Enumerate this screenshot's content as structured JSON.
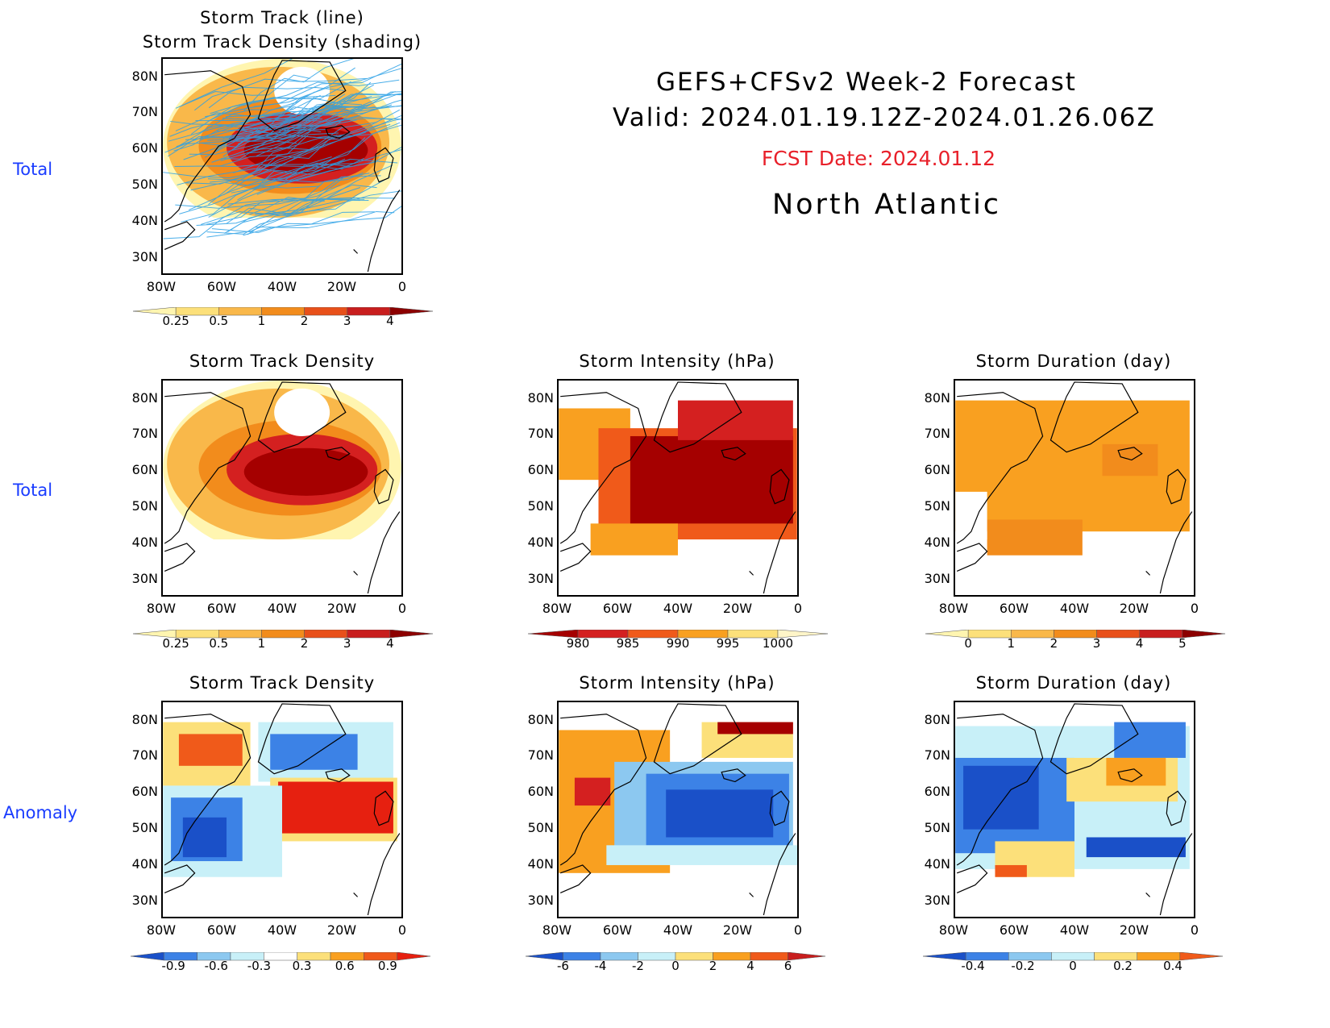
{
  "header": {
    "line1": "GEFS+CFSv2 Week-2 Forecast",
    "line2": "Valid: 2024.01.19.12Z-2024.01.26.06Z",
    "fcst_date": "FCST Date: 2024.01.12",
    "region": "North Atlantic"
  },
  "row_labels": [
    "Total",
    "Total",
    "Anomaly"
  ],
  "axes": {
    "lat_ticks": [
      "80N",
      "70N",
      "60N",
      "50N",
      "40N",
      "30N"
    ],
    "lon_ticks": [
      "80W",
      "60W",
      "40W",
      "20W",
      "0"
    ]
  },
  "panels": [
    {
      "id": "p1",
      "title_line1": "Storm Track (line)",
      "title_line2": "Storm Track Density (shading)",
      "colorbar": {
        "ticks": [
          "0.25",
          "0.5",
          "1",
          "2",
          "3",
          "4"
        ],
        "colors": [
          "#fff5b0",
          "#fce07a",
          "#f9b84a",
          "#f28c1c",
          "#e8501a",
          "#c81e1e",
          "#8c0000"
        ]
      }
    },
    {
      "id": "p2",
      "title": "Storm Track Density",
      "colorbar": {
        "ticks": [
          "0.25",
          "0.5",
          "1",
          "2",
          "3",
          "4"
        ],
        "colors": [
          "#fff5b0",
          "#fce07a",
          "#f9b84a",
          "#f28c1c",
          "#e8501a",
          "#c81e1e",
          "#8c0000"
        ]
      }
    },
    {
      "id": "p3",
      "title": "Storm Intensity (hPa)",
      "colorbar": {
        "ticks": [
          "980",
          "985",
          "990",
          "995",
          "1000"
        ],
        "colors": [
          "#a50000",
          "#d42020",
          "#f05a1a",
          "#f9a020",
          "#fce07a",
          "#fff5c8"
        ]
      }
    },
    {
      "id": "p4",
      "title": "Storm Duration (day)",
      "colorbar": {
        "ticks": [
          "0",
          "1",
          "2",
          "3",
          "4",
          "5"
        ],
        "colors": [
          "#fff5b0",
          "#fce07a",
          "#f9b84a",
          "#f28c1c",
          "#e8501a",
          "#c81e1e",
          "#8c0000"
        ]
      }
    },
    {
      "id": "p5",
      "title": "Storm Track Density",
      "colorbar": {
        "ticks": [
          "-0.9",
          "-0.6",
          "-0.3",
          "0.3",
          "0.6",
          "0.9"
        ],
        "colors": [
          "#1a50c8",
          "#3c82e6",
          "#8cc8f0",
          "#c8f0f8",
          "#ffffff",
          "#fce07a",
          "#f9a020",
          "#f05a1a",
          "#e62010"
        ]
      }
    },
    {
      "id": "p6",
      "title": "Storm Intensity (hPa)",
      "colorbar": {
        "ticks": [
          "-6",
          "-4",
          "-2",
          "0",
          "2",
          "4",
          "6"
        ],
        "colors": [
          "#1a50c8",
          "#3c82e6",
          "#8cc8f0",
          "#c8f0f8",
          "#fce07a",
          "#f9a020",
          "#f05a1a",
          "#c81e1e"
        ]
      }
    },
    {
      "id": "p7",
      "title": "Storm Duration (day)",
      "colorbar": {
        "ticks": [
          "-0.4",
          "-0.2",
          "0",
          "0.2",
          "0.4"
        ],
        "colors": [
          "#1a50c8",
          "#3c82e6",
          "#8cc8f0",
          "#c8f0f8",
          "#fce07a",
          "#f9a020",
          "#f05a1a"
        ]
      }
    }
  ],
  "colors": {
    "row_label": "#1a3cff",
    "fcst_date": "#e8202a",
    "track_line": "#2aa0e6"
  }
}
